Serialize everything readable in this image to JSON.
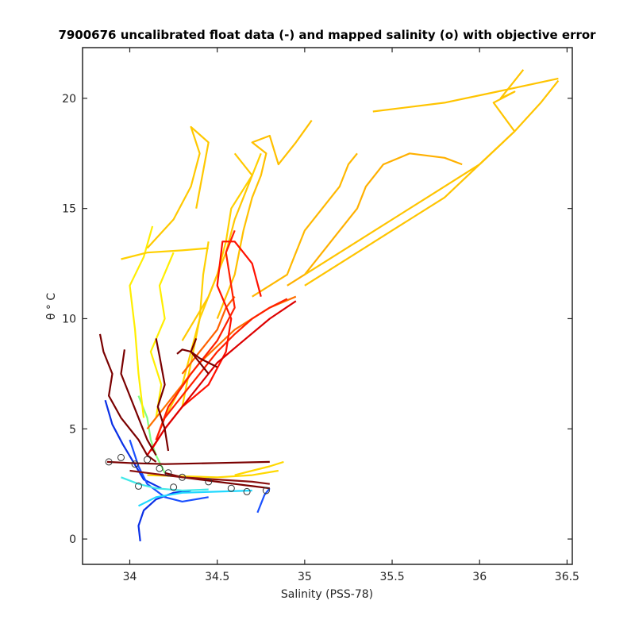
{
  "chart_data": {
    "type": "line",
    "title": "7900676 uncalibrated float data (-) and mapped salinity (o) with objective error",
    "xlabel": "Salinity (PSS-78)",
    "ylabel": "θ ° C",
    "xlim": [
      33.73,
      36.53
    ],
    "ylim": [
      -1.15,
      22.3
    ],
    "xticks": [
      34,
      34.5,
      35,
      35.5,
      36,
      36.5
    ],
    "xtick_labels": [
      "34",
      "34.5",
      "35",
      "35.5",
      "36",
      "36.5"
    ],
    "yticks": [
      0,
      5,
      10,
      15,
      20
    ],
    "ytick_labels": [
      "0",
      "5",
      "10",
      "15",
      "20"
    ],
    "grid": false,
    "colormap": [
      "#00008f",
      "#0050ff",
      "#00dfff",
      "#70ff8f",
      "#ffdf00",
      "#ff5000",
      "#e00000",
      "#800000"
    ],
    "series": [
      {
        "color": "#0b30e6",
        "salinity": [
          34.06,
          34.05,
          34.08,
          34.15,
          34.25,
          34.35
        ],
        "theta": [
          -0.1,
          0.6,
          1.3,
          1.8,
          2.1,
          2.2
        ]
      },
      {
        "color": "#0b30e6",
        "salinity": [
          33.86,
          33.9,
          33.96,
          34.02,
          34.08,
          34.18
        ],
        "theta": [
          6.3,
          5.2,
          4.3,
          3.5,
          2.7,
          2.3
        ]
      },
      {
        "color": "#1a50ff",
        "salinity": [
          34.0,
          34.05,
          34.1,
          34.2,
          34.3,
          34.45
        ],
        "theta": [
          4.5,
          3.3,
          2.5,
          1.9,
          1.7,
          1.9
        ]
      },
      {
        "color": "#1a50ff",
        "salinity": [
          34.73,
          34.75,
          34.77,
          34.8
        ],
        "theta": [
          1.2,
          1.6,
          2.0,
          2.3
        ]
      },
      {
        "color": "#20d8ff",
        "salinity": [
          34.05,
          34.15,
          34.3,
          34.5,
          34.7
        ],
        "theta": [
          1.5,
          1.9,
          2.1,
          2.15,
          2.2
        ]
      },
      {
        "color": "#40e8e8",
        "salinity": [
          33.95,
          34.05,
          34.15,
          34.3,
          34.45
        ],
        "theta": [
          2.8,
          2.5,
          2.3,
          2.2,
          2.25
        ]
      },
      {
        "color": "#80ff80",
        "salinity": [
          34.05,
          34.1,
          34.12,
          34.15,
          34.2
        ],
        "theta": [
          6.5,
          5.5,
          4.5,
          3.8,
          3.0
        ]
      },
      {
        "color": "#ffd800",
        "salinity": [
          34.6,
          34.7,
          34.8,
          34.88
        ],
        "theta": [
          2.9,
          3.1,
          3.3,
          3.5
        ]
      },
      {
        "color": "#ffd800",
        "salinity": [
          34.1,
          34.3,
          34.5,
          34.7,
          34.85
        ],
        "theta": [
          2.9,
          2.85,
          2.8,
          2.9,
          3.1
        ]
      },
      {
        "color": "#ffee00",
        "salinity": [
          34.08,
          34.05,
          34.03,
          34.0,
          34.08,
          34.13
        ],
        "theta": [
          5.5,
          7.5,
          9.5,
          11.5,
          12.8,
          14.2
        ]
      },
      {
        "color": "#ffee00",
        "salinity": [
          34.15,
          34.18,
          34.12,
          34.2,
          34.17,
          34.25
        ],
        "theta": [
          5.5,
          7.0,
          8.5,
          10.0,
          11.5,
          13.0
        ]
      },
      {
        "color": "#ffd000",
        "salinity": [
          33.95,
          34.1,
          34.3,
          34.45
        ],
        "theta": [
          12.7,
          13.0,
          13.1,
          13.2
        ]
      },
      {
        "color": "#ffd000",
        "salinity": [
          34.2,
          34.3,
          34.35,
          34.4,
          34.5,
          34.55,
          34.58,
          34.7,
          34.75
        ],
        "theta": [
          5.5,
          7.0,
          8.5,
          10.0,
          12.0,
          13.5,
          15.0,
          16.5,
          17.5
        ]
      },
      {
        "color": "#ffd000",
        "salinity": [
          34.3,
          34.35,
          34.4,
          34.42,
          34.45
        ],
        "theta": [
          6.0,
          8.0,
          10.0,
          12.0,
          13.5
        ]
      },
      {
        "color": "#ffc800",
        "salinity": [
          34.1,
          34.25,
          34.35,
          34.4,
          34.35,
          34.45,
          34.38
        ],
        "theta": [
          13.2,
          14.5,
          16.0,
          17.5,
          18.7,
          18.0,
          15.0
        ]
      },
      {
        "color": "#ffc800",
        "salinity": [
          34.3,
          34.45,
          34.55,
          34.6,
          34.65,
          34.7,
          34.6
        ],
        "theta": [
          9.0,
          11.0,
          13.0,
          14.5,
          15.5,
          16.5,
          17.5
        ]
      },
      {
        "color": "#ffc000",
        "salinity": [
          34.5,
          34.6,
          34.65,
          34.7,
          34.75,
          34.78,
          34.7,
          34.8,
          34.85,
          34.95,
          35.04
        ],
        "theta": [
          10.0,
          12.0,
          14.0,
          15.5,
          16.5,
          17.5,
          18.0,
          18.3,
          17.0,
          18.0,
          19.0
        ]
      },
      {
        "color": "#ffb800",
        "salinity": [
          34.7,
          34.8,
          34.9,
          34.95,
          35.0,
          35.1,
          35.2,
          35.25,
          35.3
        ],
        "theta": [
          11.0,
          11.5,
          12.0,
          13.0,
          14.0,
          15.0,
          16.0,
          17.0,
          17.5
        ]
      },
      {
        "color": "#ffb000",
        "salinity": [
          34.9,
          35.0,
          35.1,
          35.2,
          35.3,
          35.35,
          35.45,
          35.6,
          35.8,
          35.9
        ],
        "theta": [
          11.5,
          12.0,
          13.0,
          14.0,
          15.0,
          16.0,
          17.0,
          17.5,
          17.3,
          17.0
        ]
      },
      {
        "color": "#ffc400",
        "salinity": [
          35.0,
          35.3,
          35.6,
          35.8,
          36.0,
          36.2,
          36.35,
          36.45
        ],
        "theta": [
          11.5,
          13.0,
          14.5,
          15.5,
          17.0,
          18.5,
          19.8,
          20.8
        ]
      },
      {
        "color": "#ffc400",
        "salinity": [
          35.0,
          35.4,
          35.7,
          36.0,
          36.2,
          36.08,
          36.2,
          36.12,
          36.25
        ],
        "theta": [
          12.0,
          14.0,
          15.5,
          17.0,
          18.5,
          19.8,
          20.3,
          20.0,
          21.3
        ]
      },
      {
        "color": "#ffc400",
        "salinity": [
          36.45,
          36.1,
          35.8,
          35.39
        ],
        "theta": [
          20.9,
          20.3,
          19.8,
          19.4
        ]
      },
      {
        "color": "#ff6000",
        "salinity": [
          34.3,
          34.4,
          34.5,
          34.55,
          34.6
        ],
        "theta": [
          7.5,
          8.5,
          9.5,
          10.5,
          11.0
        ]
      },
      {
        "color": "#ff7000",
        "salinity": [
          34.1,
          34.25,
          34.4,
          34.6,
          34.8,
          34.95
        ],
        "theta": [
          5.0,
          6.5,
          8.0,
          9.5,
          10.5,
          11.0
        ]
      },
      {
        "color": "#ff2000",
        "salinity": [
          34.15,
          34.2,
          34.3,
          34.4,
          34.5,
          34.6,
          34.7,
          34.8,
          34.9
        ],
        "theta": [
          4.5,
          5.5,
          6.5,
          7.5,
          8.5,
          9.3,
          10.0,
          10.5,
          10.9
        ]
      },
      {
        "color": "#ff1000",
        "salinity": [
          34.12,
          34.2,
          34.3,
          34.45,
          34.55,
          34.58,
          34.5,
          34.53,
          34.6,
          34.7,
          34.75
        ],
        "theta": [
          4.0,
          5.0,
          6.0,
          7.0,
          8.5,
          10.0,
          11.5,
          13.5,
          13.5,
          12.5,
          11.0
        ]
      },
      {
        "color": "#ff2000",
        "salinity": [
          34.15,
          34.22,
          34.35,
          34.5,
          34.6,
          34.57,
          34.55,
          34.6
        ],
        "theta": [
          4.5,
          6.0,
          7.5,
          9.0,
          10.5,
          12.0,
          13.0,
          14.0
        ]
      },
      {
        "color": "#dd0000",
        "salinity": [
          34.1,
          34.2,
          34.35,
          34.5,
          34.65,
          34.8,
          34.95
        ],
        "theta": [
          3.8,
          5.0,
          6.5,
          8.0,
          9.0,
          10.0,
          10.8
        ]
      },
      {
        "color": "#7a0000",
        "salinity": [
          33.83,
          33.85,
          33.9,
          33.88,
          33.95,
          34.05,
          34.1,
          34.15
        ],
        "theta": [
          9.3,
          8.5,
          7.5,
          6.5,
          5.5,
          4.5,
          3.8,
          3.5
        ]
      },
      {
        "color": "#7a0000",
        "salinity": [
          33.97,
          33.95,
          34.0,
          34.05,
          34.1,
          34.15
        ],
        "theta": [
          8.6,
          7.5,
          6.5,
          5.5,
          4.5,
          3.8
        ]
      },
      {
        "color": "#7a0000",
        "salinity": [
          34.15,
          34.17,
          34.2,
          34.16,
          34.2,
          34.22
        ],
        "theta": [
          9.1,
          8.3,
          7.0,
          6.0,
          5.0,
          4.0
        ]
      },
      {
        "color": "#7a0000",
        "salinity": [
          34.27,
          34.3,
          34.35,
          34.4,
          34.45,
          34.5
        ],
        "theta": [
          8.4,
          8.6,
          8.5,
          8.2,
          8.0,
          7.8
        ]
      },
      {
        "color": "#7a0000",
        "salinity": [
          34.38,
          34.35,
          34.4,
          34.45
        ],
        "theta": [
          9.1,
          8.5,
          8.0,
          7.5
        ]
      },
      {
        "color": "#7a0000",
        "salinity": [
          33.87,
          34.0,
          34.2,
          34.5,
          34.8
        ],
        "theta": [
          3.5,
          3.45,
          3.4,
          3.45,
          3.5
        ]
      },
      {
        "color": "#7a0000",
        "salinity": [
          34.2,
          34.3,
          34.4,
          34.5,
          34.6,
          34.7,
          34.8
        ],
        "theta": [
          3.0,
          2.8,
          2.7,
          2.6,
          2.5,
          2.4,
          2.3
        ]
      },
      {
        "color": "#8a1010",
        "salinity": [
          34.0,
          34.1,
          34.2,
          34.3,
          34.5,
          34.7,
          34.8
        ],
        "theta": [
          3.1,
          3.0,
          2.9,
          2.8,
          2.7,
          2.6,
          2.5
        ]
      }
    ],
    "mapped_points": [
      {
        "salinity": 33.88,
        "theta": 3.5
      },
      {
        "salinity": 33.95,
        "theta": 3.7
      },
      {
        "salinity": 34.03,
        "theta": 3.4
      },
      {
        "salinity": 34.1,
        "theta": 3.6
      },
      {
        "salinity": 34.17,
        "theta": 3.2
      },
      {
        "salinity": 34.22,
        "theta": 3.0
      },
      {
        "salinity": 34.3,
        "theta": 2.8
      },
      {
        "salinity": 34.45,
        "theta": 2.6
      },
      {
        "salinity": 34.58,
        "theta": 2.3
      },
      {
        "salinity": 34.67,
        "theta": 2.15
      },
      {
        "salinity": 34.78,
        "theta": 2.2
      },
      {
        "salinity": 34.05,
        "theta": 2.4
      },
      {
        "salinity": 34.25,
        "theta": 2.35
      }
    ]
  }
}
